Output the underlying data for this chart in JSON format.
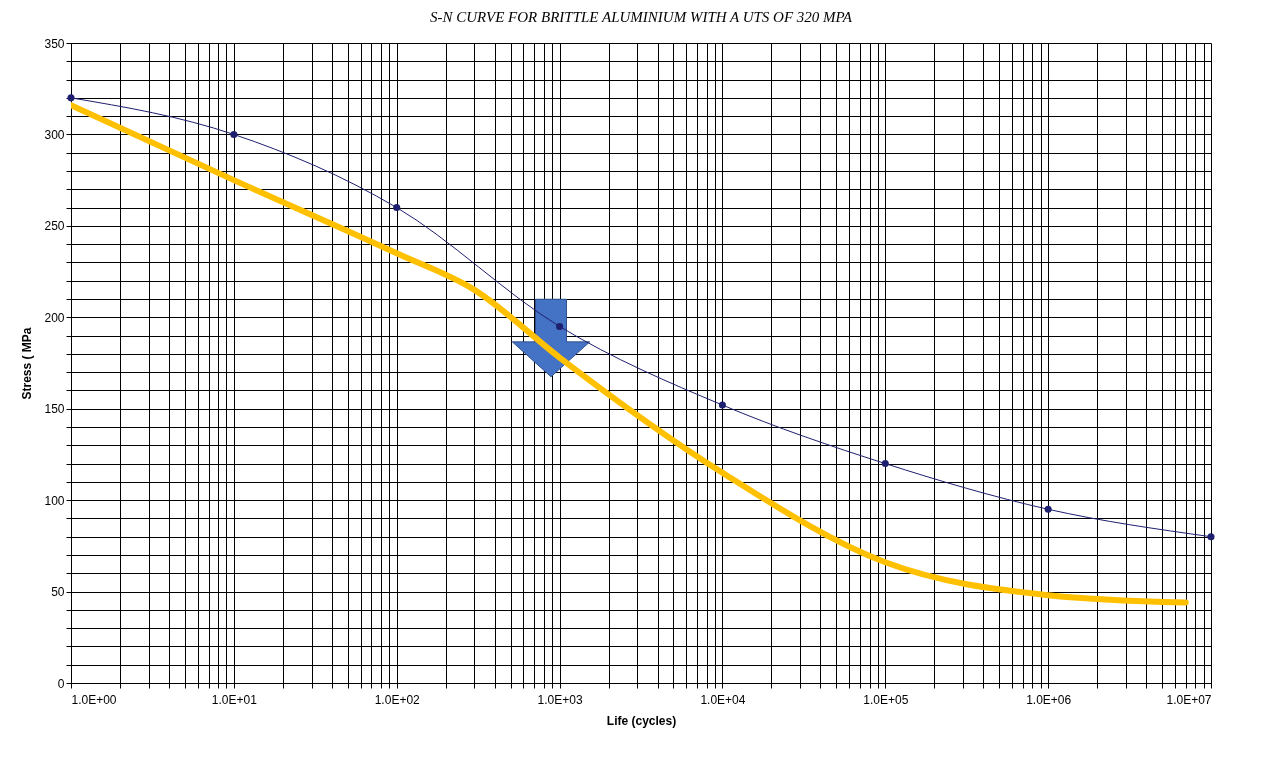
{
  "chart_data": {
    "type": "line",
    "title": "S-N CURVE FOR BRITTLE ALUMINIUM WITH A UTS OF 320 MPA",
    "xlabel": "Life (cycles)",
    "ylabel": "Stress ( MPa",
    "log": "x",
    "grid": true,
    "line_style": "solid",
    "xlim": [
      1,
      10000000
    ],
    "ylim": [
      0,
      350
    ],
    "xticks": [
      {
        "value": 1,
        "label": "1.0E+00"
      },
      {
        "value": 2,
        "label": null
      },
      {
        "value": 3,
        "label": null
      },
      {
        "value": 4,
        "label": null
      },
      {
        "value": 5,
        "label": null
      },
      {
        "value": 6,
        "label": null
      },
      {
        "value": 7,
        "label": null
      },
      {
        "value": 8,
        "label": null
      },
      {
        "value": 9,
        "label": null
      },
      {
        "value": 10,
        "label": "1.0E+01"
      },
      {
        "value": 20,
        "label": null
      },
      {
        "value": 30,
        "label": null
      },
      {
        "value": 40,
        "label": null
      },
      {
        "value": 50,
        "label": null
      },
      {
        "value": 60,
        "label": null
      },
      {
        "value": 70,
        "label": null
      },
      {
        "value": 80,
        "label": null
      },
      {
        "value": 90,
        "label": null
      },
      {
        "value": 100,
        "label": "1.0E+02"
      },
      {
        "value": 200,
        "label": null
      },
      {
        "value": 300,
        "label": null
      },
      {
        "value": 400,
        "label": null
      },
      {
        "value": 500,
        "label": null
      },
      {
        "value": 600,
        "label": null
      },
      {
        "value": 700,
        "label": null
      },
      {
        "value": 800,
        "label": null
      },
      {
        "value": 900,
        "label": null
      },
      {
        "value": 1000,
        "label": "1.0E+03"
      },
      {
        "value": 2000,
        "label": null
      },
      {
        "value": 3000,
        "label": null
      },
      {
        "value": 4000,
        "label": null
      },
      {
        "value": 5000,
        "label": null
      },
      {
        "value": 6000,
        "label": null
      },
      {
        "value": 7000,
        "label": null
      },
      {
        "value": 8000,
        "label": null
      },
      {
        "value": 9000,
        "label": null
      },
      {
        "value": 10000,
        "label": "1.0E+04"
      },
      {
        "value": 20000,
        "label": null
      },
      {
        "value": 30000,
        "label": null
      },
      {
        "value": 40000,
        "label": null
      },
      {
        "value": 50000,
        "label": null
      },
      {
        "value": 60000,
        "label": null
      },
      {
        "value": 70000,
        "label": null
      },
      {
        "value": 80000,
        "label": null
      },
      {
        "value": 90000,
        "label": null
      },
      {
        "value": 100000,
        "label": "1.0E+05"
      },
      {
        "value": 200000,
        "label": null
      },
      {
        "value": 300000,
        "label": null
      },
      {
        "value": 400000,
        "label": null
      },
      {
        "value": 500000,
        "label": null
      },
      {
        "value": 600000,
        "label": null
      },
      {
        "value": 700000,
        "label": null
      },
      {
        "value": 800000,
        "label": null
      },
      {
        "value": 900000,
        "label": null
      },
      {
        "value": 1000000,
        "label": "1.0E+06"
      },
      {
        "value": 2000000,
        "label": null
      },
      {
        "value": 3000000,
        "label": null
      },
      {
        "value": 4000000,
        "label": null
      },
      {
        "value": 5000000,
        "label": null
      },
      {
        "value": 6000000,
        "label": null
      },
      {
        "value": 7000000,
        "label": null
      },
      {
        "value": 8000000,
        "label": null
      },
      {
        "value": 9000000,
        "label": null
      },
      {
        "value": 10000000,
        "label": "1.0E+07"
      }
    ],
    "yticks": [
      0,
      {
        "value": 10,
        "label": null
      },
      {
        "value": 20,
        "label": null
      },
      {
        "value": 30,
        "label": null
      },
      {
        "value": 40,
        "label": null
      },
      50,
      {
        "value": 60,
        "label": null
      },
      {
        "value": 70,
        "label": null
      },
      {
        "value": 80,
        "label": null
      },
      {
        "value": 90,
        "label": null
      },
      100,
      {
        "value": 110,
        "label": null
      },
      {
        "value": 120,
        "label": null
      },
      {
        "value": 130,
        "label": null
      },
      {
        "value": 140,
        "label": null
      },
      150,
      {
        "value": 160,
        "label": null
      },
      {
        "value": 170,
        "label": null
      },
      {
        "value": 180,
        "label": null
      },
      {
        "value": 190,
        "label": null
      },
      200,
      {
        "value": 210,
        "label": null
      },
      {
        "value": 220,
        "label": null
      },
      {
        "value": 230,
        "label": null
      },
      {
        "value": 240,
        "label": null
      },
      250,
      {
        "value": 260,
        "label": null
      },
      {
        "value": 270,
        "label": null
      },
      {
        "value": 280,
        "label": null
      },
      {
        "value": 290,
        "label": null
      },
      300,
      {
        "value": 310,
        "label": null
      },
      {
        "value": 320,
        "label": null
      },
      {
        "value": 330,
        "label": null
      },
      {
        "value": 340,
        "label": null
      },
      350
    ],
    "series": [
      {
        "color": "#1f1f70",
        "marker": "circle",
        "x": [
          1,
          10,
          100,
          1000,
          10000,
          100000,
          1000000,
          10000000
        ],
        "values": [
          320,
          300,
          260,
          195,
          152,
          120,
          95,
          80
        ]
      },
      {
        "color": "#ffc000",
        "marker": "none",
        "x": [
          1,
          10,
          100,
          300,
          1000,
          10000,
          100000,
          1000000,
          7000000
        ],
        "values": [
          316,
          275,
          235,
          215,
          178,
          115,
          66,
          48,
          44
        ]
      }
    ]
  }
}
